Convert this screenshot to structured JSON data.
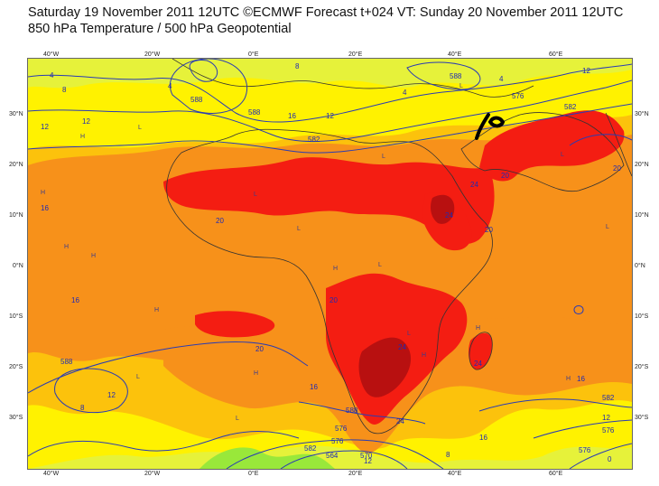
{
  "header": {
    "line1": "Saturday 19 November 2011 12UTC ©ECMWF Forecast t+024 VT: Sunday 20 November 2011 12UTC",
    "line2": "850 hPa Temperature / 500 hPa Geopotential"
  },
  "axes": {
    "lon_ticks": [
      "40°W",
      "20°W",
      "0°E",
      "20°E",
      "40°E",
      "60°E"
    ],
    "lat_ticks": [
      "30°N",
      "20°N",
      "10°N",
      "0°N",
      "10°S",
      "20°S",
      "30°S"
    ]
  },
  "colors": {
    "temp_below_8": "#99e83a",
    "temp_8_12": "#e6f23a",
    "temp_12_16": "#fff200",
    "temp_16_20": "#fcc20c",
    "temp_20_24": "#f7911a",
    "temp_24_28": "#f41d12",
    "temp_above_28": "#b81010",
    "geopotential_line": "#2a3cb3",
    "coastline": "#333333"
  },
  "contour_labels": {
    "temperature": [
      "4",
      "4",
      "4",
      "4",
      "8",
      "8",
      "8",
      "8",
      "12",
      "12",
      "12",
      "12",
      "12",
      "12",
      "12",
      "16",
      "16",
      "16",
      "16",
      "16",
      "16",
      "20",
      "20",
      "20",
      "20",
      "20",
      "20",
      "24",
      "24",
      "24",
      "24",
      "24",
      "0"
    ],
    "geopotential": [
      "588",
      "582",
      "588",
      "576",
      "582",
      "588",
      "588",
      "576",
      "588",
      "582",
      "576",
      "570",
      "564",
      "576",
      "576",
      "582"
    ]
  },
  "pressure_markers": [
    "H",
    "L"
  ]
}
